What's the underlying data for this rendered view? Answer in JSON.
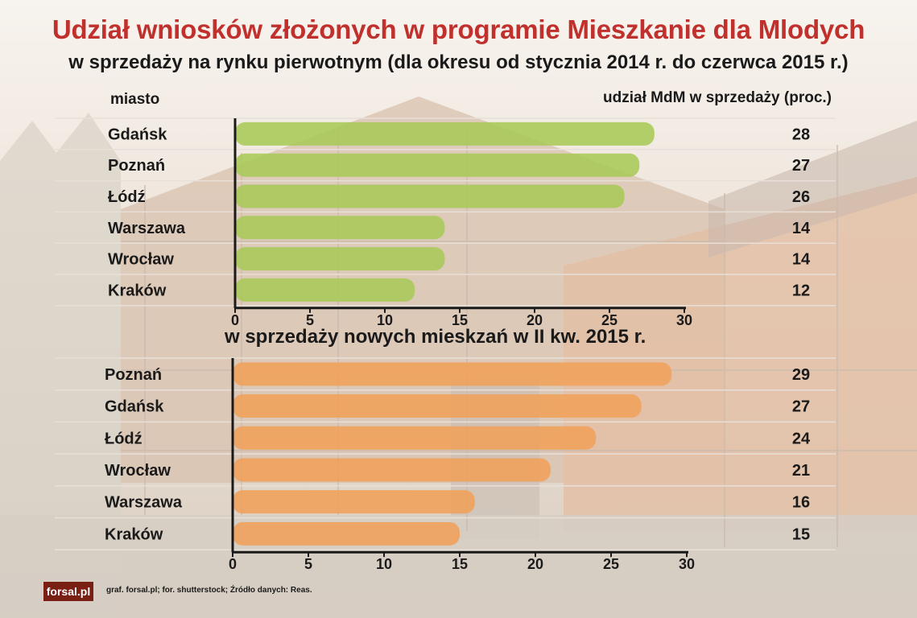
{
  "title": "Udział wniosków złożonych w programie Mieszkanie dla Mlodych",
  "subtitle": "w sprzedaży na rynku pierwotnym (dla okresu od stycznia 2014 r. do czerwca 2015 r.)",
  "column_header_city": "miasto",
  "column_header_share": "udział MdM w sprzedaży (proc.)",
  "section2_title": "w sprzedaży nowych mieskzań w II kw. 2015 r.",
  "logo": "forsal.pl",
  "footer": "graf. forsal.pl; for. shutterstock;  Źródło danych:  Reas.",
  "colors": {
    "green_bar": "#a8c958",
    "orange_bar": "#f0a05a",
    "title_red": "#c0302c"
  },
  "chart_data": [
    {
      "type": "bar",
      "orientation": "horizontal",
      "categories": [
        "Gdańsk",
        "Poznań",
        "Łódź",
        "Warszawa",
        "Wrocław",
        "Kraków"
      ],
      "values": [
        28,
        27,
        26,
        14,
        14,
        12
      ],
      "value_labels": [
        "28",
        "27",
        "26",
        "14",
        "14",
        "12"
      ],
      "xlim": [
        0,
        30
      ],
      "xticks": [
        "0",
        "5",
        "10",
        "15",
        "20",
        "25",
        "30"
      ],
      "color": "#a8c958",
      "grid": false
    },
    {
      "type": "bar",
      "orientation": "horizontal",
      "categories": [
        "Poznań",
        "Gdańsk",
        "Łódź",
        "Wrocław",
        "Warszawa",
        "Kraków"
      ],
      "values": [
        29,
        27,
        24,
        21,
        16,
        15
      ],
      "value_labels": [
        "29",
        "27",
        "24",
        "21",
        "16",
        "15"
      ],
      "xlim": [
        0,
        30
      ],
      "xticks": [
        "0",
        "5",
        "10",
        "15",
        "20",
        "25",
        "30"
      ],
      "color": "#f0a05a",
      "grid": false
    }
  ]
}
